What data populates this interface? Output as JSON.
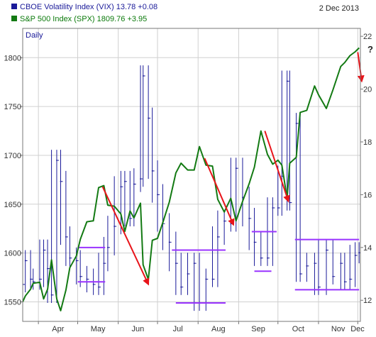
{
  "header": {
    "vix_label": "CBOE Volatility Index (VIX) 13.78 +0.08",
    "spx_label": "S&P 500 Index (SPX) 1809.76 +3.95",
    "date": "2 Dec 2013",
    "period": "Daily",
    "question_mark": "?"
  },
  "colors": {
    "vix": "#1a1a99",
    "spx": "#137a13",
    "arrow": "#e8141a",
    "level": "#9933ff",
    "grid": "#d0d0d0",
    "frame": "#777777",
    "vix_text": "#1a1a99",
    "spx_text": "#0b7a0b"
  },
  "chart_data": {
    "type": "line",
    "title": "",
    "x_ticks": [
      "Apr",
      "May",
      "Jun",
      "Jul",
      "Aug",
      "Sep",
      "Oct",
      "Nov",
      "Dec"
    ],
    "xlim": [
      "2013-03-20",
      "2013-12-03"
    ],
    "y_left": {
      "label": "S&P 500 Index (SPX)",
      "ticks": [
        1550,
        1600,
        1650,
        1700,
        1750,
        1800
      ],
      "range": [
        1530,
        1830
      ]
    },
    "y_right": {
      "label": "CBOE Volatility Index (VIX)",
      "ticks": [
        12,
        14,
        16,
        18,
        20,
        22
      ],
      "range": [
        11.2,
        22.3
      ]
    },
    "grid": true,
    "series": [
      {
        "name": "S&P 500 Index (SPX)",
        "axis": "left",
        "points": [
          [
            "2013-03-20",
            1550
          ],
          [
            "2013-03-22",
            1556
          ],
          [
            "2013-03-26",
            1563
          ],
          [
            "2013-03-28",
            1569
          ],
          [
            "2013-04-02",
            1570
          ],
          [
            "2013-04-05",
            1553
          ],
          [
            "2013-04-08",
            1563
          ],
          [
            "2013-04-11",
            1593
          ],
          [
            "2013-04-15",
            1553
          ],
          [
            "2013-04-18",
            1541
          ],
          [
            "2013-04-22",
            1562
          ],
          [
            "2013-04-25",
            1585
          ],
          [
            "2013-04-30",
            1597
          ],
          [
            "2013-05-03",
            1614
          ],
          [
            "2013-05-08",
            1632
          ],
          [
            "2013-05-13",
            1633
          ],
          [
            "2013-05-17",
            1667
          ],
          [
            "2013-05-21",
            1669
          ],
          [
            "2013-05-24",
            1649
          ],
          [
            "2013-05-29",
            1648
          ],
          [
            "2013-06-03",
            1640
          ],
          [
            "2013-06-06",
            1622
          ],
          [
            "2013-06-10",
            1643
          ],
          [
            "2013-06-13",
            1636
          ],
          [
            "2013-06-18",
            1651
          ],
          [
            "2013-06-20",
            1588
          ],
          [
            "2013-06-24",
            1573
          ],
          [
            "2013-06-27",
            1613
          ],
          [
            "2013-07-01",
            1615
          ],
          [
            "2013-07-05",
            1631
          ],
          [
            "2013-07-10",
            1652
          ],
          [
            "2013-07-15",
            1682
          ],
          [
            "2013-07-19",
            1692
          ],
          [
            "2013-07-24",
            1685
          ],
          [
            "2013-07-29",
            1685
          ],
          [
            "2013-08-02",
            1709
          ],
          [
            "2013-08-07",
            1690
          ],
          [
            "2013-08-12",
            1689
          ],
          [
            "2013-08-16",
            1655
          ],
          [
            "2013-08-21",
            1642
          ],
          [
            "2013-08-26",
            1656
          ],
          [
            "2013-08-30",
            1633
          ],
          [
            "2013-09-04",
            1653
          ],
          [
            "2013-09-09",
            1671
          ],
          [
            "2013-09-13",
            1688
          ],
          [
            "2013-09-18",
            1725
          ],
          [
            "2013-09-23",
            1701
          ],
          [
            "2013-09-27",
            1691
          ],
          [
            "2013-10-01",
            1695
          ],
          [
            "2013-10-04",
            1690
          ],
          [
            "2013-10-08",
            1656
          ],
          [
            "2013-10-10",
            1692
          ],
          [
            "2013-10-15",
            1698
          ],
          [
            "2013-10-18",
            1744
          ],
          [
            "2013-10-23",
            1746
          ],
          [
            "2013-10-29",
            1771
          ],
          [
            "2013-11-01",
            1762
          ],
          [
            "2013-11-07",
            1748
          ],
          [
            "2013-11-12",
            1767
          ],
          [
            "2013-11-18",
            1791
          ],
          [
            "2013-11-21",
            1795
          ],
          [
            "2013-11-25",
            1802
          ],
          [
            "2013-11-29",
            1806
          ],
          [
            "2013-12-02",
            1810
          ]
        ]
      },
      {
        "name": "CBOE Volatility Index (VIX)",
        "axis": "right",
        "points": [
          [
            "2013-03-20",
            12.6
          ],
          [
            "2013-03-22",
            13.5
          ],
          [
            "2013-03-26",
            12.8
          ],
          [
            "2013-03-28",
            12.7
          ],
          [
            "2013-04-02",
            12.8
          ],
          [
            "2013-04-05",
            13.9
          ],
          [
            "2013-04-08",
            13.2
          ],
          [
            "2013-04-11",
            12.2
          ],
          [
            "2013-04-15",
            17.3
          ],
          [
            "2013-04-18",
            16.5
          ],
          [
            "2013-04-22",
            14.4
          ],
          [
            "2013-04-25",
            13.6
          ],
          [
            "2013-04-30",
            13.5
          ],
          [
            "2013-05-03",
            12.9
          ],
          [
            "2013-05-08",
            12.8
          ],
          [
            "2013-05-13",
            12.6
          ],
          [
            "2013-05-17",
            12.5
          ],
          [
            "2013-05-21",
            13.4
          ],
          [
            "2013-05-24",
            14.0
          ],
          [
            "2013-05-29",
            14.8
          ],
          [
            "2013-06-03",
            16.3
          ],
          [
            "2013-06-06",
            16.5
          ],
          [
            "2013-06-10",
            15.1
          ],
          [
            "2013-06-13",
            16.4
          ],
          [
            "2013-06-18",
            16.6
          ],
          [
            "2013-06-20",
            20.5
          ],
          [
            "2013-06-24",
            18.9
          ],
          [
            "2013-06-27",
            16.9
          ],
          [
            "2013-07-01",
            16.0
          ],
          [
            "2013-07-05",
            14.9
          ],
          [
            "2013-07-10",
            14.2
          ],
          [
            "2013-07-15",
            13.4
          ],
          [
            "2013-07-19",
            12.5
          ],
          [
            "2013-07-24",
            13.0
          ],
          [
            "2013-07-29",
            13.4
          ],
          [
            "2013-08-02",
            11.9
          ],
          [
            "2013-08-07",
            12.8
          ],
          [
            "2013-08-12",
            12.8
          ],
          [
            "2013-08-16",
            14.4
          ],
          [
            "2013-08-21",
            15.0
          ],
          [
            "2013-08-26",
            14.9
          ],
          [
            "2013-08-30",
            17.0
          ],
          [
            "2013-09-04",
            15.9
          ],
          [
            "2013-09-09",
            15.1
          ],
          [
            "2013-09-13",
            14.2
          ],
          [
            "2013-09-18",
            13.6
          ],
          [
            "2013-09-23",
            13.6
          ],
          [
            "2013-09-27",
            15.5
          ],
          [
            "2013-10-01",
            15.5
          ],
          [
            "2013-10-04",
            16.7
          ],
          [
            "2013-10-08",
            20.3
          ],
          [
            "2013-10-10",
            15.7
          ],
          [
            "2013-10-15",
            18.7
          ],
          [
            "2013-10-18",
            13.0
          ],
          [
            "2013-10-23",
            13.3
          ],
          [
            "2013-10-29",
            13.4
          ],
          [
            "2013-11-01",
            12.5
          ],
          [
            "2013-11-07",
            13.9
          ],
          [
            "2013-11-12",
            12.9
          ],
          [
            "2013-11-18",
            13.4
          ],
          [
            "2013-11-21",
            12.7
          ],
          [
            "2013-11-25",
            12.8
          ],
          [
            "2013-11-29",
            13.7
          ],
          [
            "2013-12-02",
            13.8
          ]
        ]
      }
    ],
    "annotations": {
      "arrows": [
        {
          "from": [
            "2013-05-20",
            1668
          ],
          "to": [
            "2013-06-24",
            1568
          ]
        },
        {
          "from": [
            "2013-08-06",
            1697
          ],
          "to": [
            "2013-08-28",
            1629
          ]
        },
        {
          "from": [
            "2013-09-21",
            1725
          ],
          "to": [
            "2013-10-09",
            1653
          ]
        },
        {
          "from": [
            "2013-12-01",
            21.4
          ],
          "to": [
            "2013-12-04",
            20.3
          ],
          "axis": "right"
        }
      ],
      "levels": [
        {
          "from": "2013-05-01",
          "to": "2013-05-22",
          "vix": 14.0
        },
        {
          "from": "2013-05-01",
          "to": "2013-05-22",
          "vix": 12.7
        },
        {
          "from": "2013-07-12",
          "to": "2013-08-22",
          "vix": 13.9
        },
        {
          "from": "2013-07-15",
          "to": "2013-08-22",
          "vix": 11.9
        },
        {
          "from": "2013-09-11",
          "to": "2013-09-30",
          "vix": 14.6
        },
        {
          "from": "2013-09-13",
          "to": "2013-09-26",
          "vix": 13.1
        },
        {
          "from": "2013-10-14",
          "to": "2013-12-02",
          "vix": 14.3
        },
        {
          "from": "2013-10-14",
          "to": "2013-12-02",
          "vix": 12.4
        }
      ]
    }
  }
}
